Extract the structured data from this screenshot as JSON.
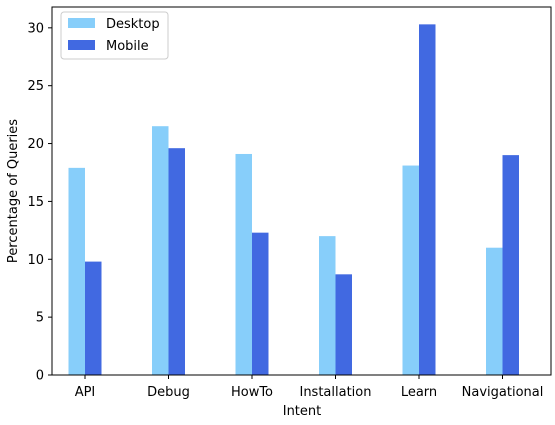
{
  "chart_data": {
    "type": "bar",
    "title": "",
    "xlabel": "Intent",
    "ylabel": "Percentage of Queries",
    "categories": [
      "API",
      "Debug",
      "HowTo",
      "Installation",
      "Learn",
      "Navigational"
    ],
    "series": [
      {
        "name": "Desktop",
        "color": "#87CEFA",
        "values": [
          17.9,
          21.5,
          19.1,
          12.0,
          18.1,
          11.0
        ]
      },
      {
        "name": "Mobile",
        "color": "#4169E1",
        "values": [
          9.8,
          19.6,
          12.3,
          8.7,
          30.3,
          19.0
        ]
      }
    ],
    "ylim": [
      0,
      31.8
    ],
    "yticks": [
      0,
      5,
      10,
      15,
      20,
      25,
      30
    ],
    "grid": false,
    "legend_position": "upper left"
  }
}
